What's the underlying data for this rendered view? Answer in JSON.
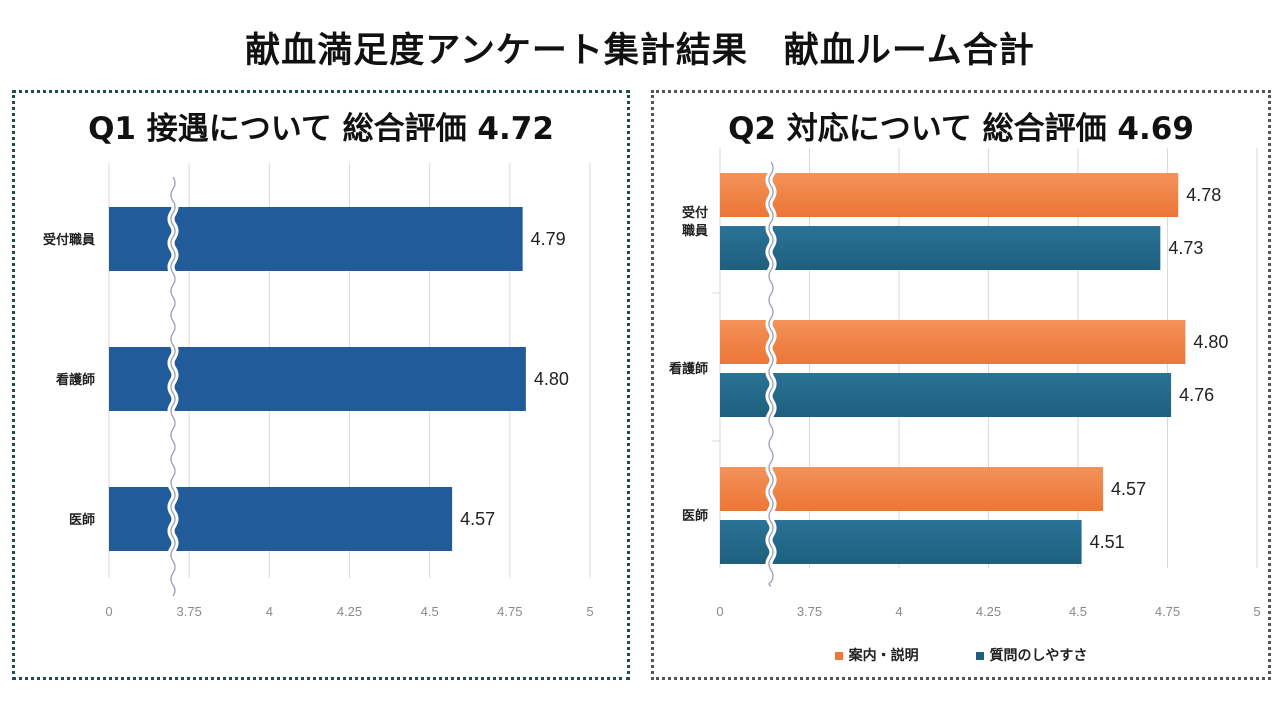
{
  "title": "献血満足度アンケート集計結果　献血ルーム合計",
  "colors": {
    "blue": "#215b9a",
    "orange": "#ec7636",
    "teal": "#1e5f7e"
  },
  "chart_data": [
    {
      "type": "bar",
      "orientation": "horizontal",
      "title": "Q1  接遇について 総合評価 4.72",
      "categories": [
        "受付職員",
        "看護師",
        "医師"
      ],
      "series": [
        {
          "name": "",
          "values": [
            4.79,
            4.8,
            4.57
          ]
        }
      ],
      "value_labels": [
        "4.79",
        "4.80",
        "4.57"
      ],
      "axis_break": true,
      "ticks": [
        "0",
        "3.75",
        "4",
        "4.25",
        "4.5",
        "4.75",
        "5"
      ],
      "tick_values": [
        3.5,
        3.75,
        4.0,
        4.25,
        4.5,
        4.75,
        5.0
      ],
      "xlim": [
        3.5,
        5.0
      ]
    },
    {
      "type": "bar",
      "orientation": "horizontal",
      "title": "Q2  対応について 総合評価 4.69",
      "categories": [
        "受付職員",
        "看護師",
        "医師"
      ],
      "category_lines": [
        [
          "受付",
          "職員"
        ],
        [
          "看護師"
        ],
        [
          "医師"
        ]
      ],
      "series": [
        {
          "name": "案内・説明",
          "values": [
            4.78,
            4.8,
            4.57
          ],
          "value_labels": [
            "4.78",
            "4.80",
            "4.57"
          ]
        },
        {
          "name": "質問のしやすさ",
          "values": [
            4.73,
            4.76,
            4.51
          ],
          "value_labels": [
            "4.73",
            "4.76",
            "4.51"
          ]
        }
      ],
      "axis_break": true,
      "ticks": [
        "0",
        "3.75",
        "4",
        "4.25",
        "4.5",
        "4.75",
        "5"
      ],
      "tick_values": [
        3.5,
        3.75,
        4.0,
        4.25,
        4.5,
        4.75,
        5.0
      ],
      "xlim": [
        3.5,
        5.0
      ],
      "legend": [
        "案内・説明",
        "質問のしやすさ"
      ]
    }
  ]
}
